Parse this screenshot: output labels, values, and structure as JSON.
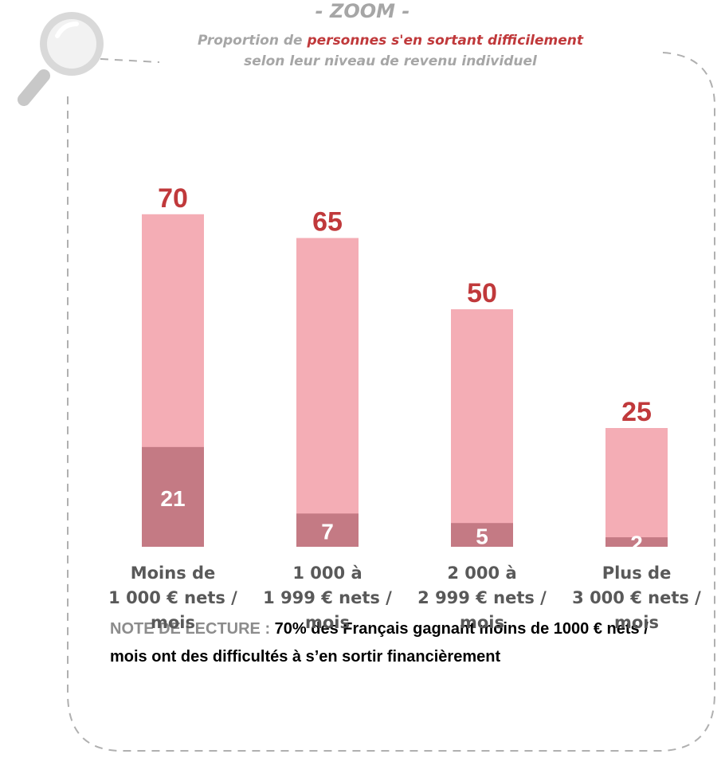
{
  "title": "- ZOOM -",
  "subtitle": {
    "before": "Proportion de ",
    "highlight": "personnes s'en sortant difficilement",
    "line2": "selon leur niveau de revenu  individuel"
  },
  "chart_data": {
    "type": "bar",
    "categories": [
      "Moins de\n1 000 € nets /\nmois",
      "1 000 à\n1 999 € nets /\nmois",
      "2 000 à\n2 999 € nets /\nmois",
      "Plus de\n3 000 €  nets /\nmois"
    ],
    "series": [
      {
        "color": "#f4adb5",
        "label_color": "#c0393b",
        "values": [
          70,
          65,
          50,
          25
        ]
      },
      {
        "color": "#c47a84",
        "label_color": "#ffffff",
        "values": [
          21,
          7,
          5,
          2
        ]
      }
    ]
  },
  "note": {
    "label": "NOTE DE LECTURE : ",
    "text": "70% des Français gagnant moins de 1000 € nets / mois ont des difficultés à s’en sortir financièrement"
  }
}
